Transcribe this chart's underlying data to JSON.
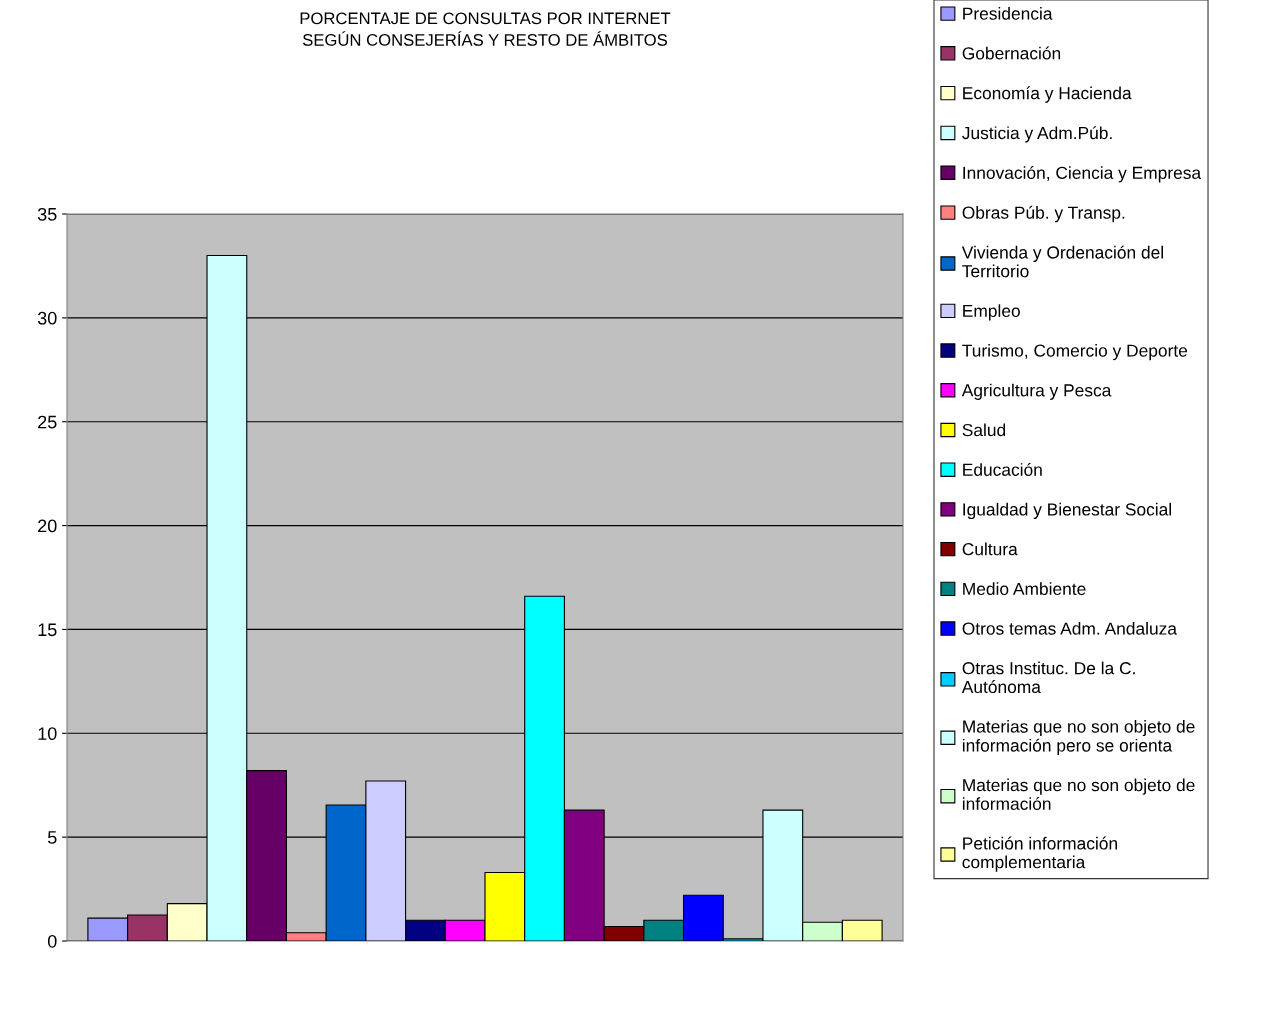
{
  "chart_data": {
    "type": "bar",
    "title": "PORCENTAJE DE CONSULTAS POR INTERNET\nSEGÚN CONSEJERÍAS Y RESTO DE ÁMBITOS",
    "categories": [
      null
    ],
    "series": [
      {
        "name": "Presidencia",
        "color": "#9999ff",
        "values": [
          1.1
        ]
      },
      {
        "name": "Gobernación",
        "color": "#993366",
        "values": [
          1.25
        ]
      },
      {
        "name": "Economía y Hacienda",
        "color": "#ffffcc",
        "values": [
          1.8
        ]
      },
      {
        "name": "Justicia y Adm.Púb.",
        "color": "#ccffff",
        "values": [
          33
        ]
      },
      {
        "name": "Innovación, Ciencia y Empresa",
        "color": "#660066",
        "values": [
          8.2
        ]
      },
      {
        "name": "Obras Púb. y Transp.",
        "color": "#ff8080",
        "values": [
          0.4
        ]
      },
      {
        "name": "Vivienda y Ordenación del\nTerritorio",
        "color": "#0066cc",
        "values": [
          6.55
        ]
      },
      {
        "name": "Empleo",
        "color": "#ccccff",
        "values": [
          7.7
        ]
      },
      {
        "name": "Turismo, Comercio y Deporte",
        "color": "#000080",
        "values": [
          1.0
        ]
      },
      {
        "name": "Agricultura y Pesca",
        "color": "#ff00ff",
        "values": [
          1.0
        ]
      },
      {
        "name": "Salud",
        "color": "#ffff00",
        "values": [
          3.3
        ]
      },
      {
        "name": "Educación",
        "color": "#00ffff",
        "values": [
          16.6
        ]
      },
      {
        "name": "Igualdad y Bienestar Social",
        "color": "#800080",
        "values": [
          6.3
        ]
      },
      {
        "name": "Cultura",
        "color": "#800000",
        "values": [
          0.7
        ]
      },
      {
        "name": "Medio Ambiente",
        "color": "#008080",
        "values": [
          1.0
        ]
      },
      {
        "name": "Otros temas Adm. Andaluza",
        "color": "#0000ff",
        "values": [
          2.2
        ]
      },
      {
        "name": "Otras Instituc. De la C.\nAutónoma",
        "color": "#00ccff",
        "values": [
          0.1
        ]
      },
      {
        "name": "Materias que no son objeto de\ninformación pero se orienta",
        "color": "#ccffff",
        "values": [
          6.3
        ]
      },
      {
        "name": "Materias que no son objeto de\ninformación",
        "color": "#ccffcc",
        "values": [
          0.9
        ]
      },
      {
        "name": "Petición información\ncomplementaria",
        "color": "#ffff99",
        "values": [
          1.0
        ]
      }
    ],
    "ylim": [
      0,
      35
    ],
    "yticks": [
      0,
      5,
      10,
      15,
      20,
      25,
      30,
      35
    ],
    "grid": "y",
    "legend": "right"
  }
}
